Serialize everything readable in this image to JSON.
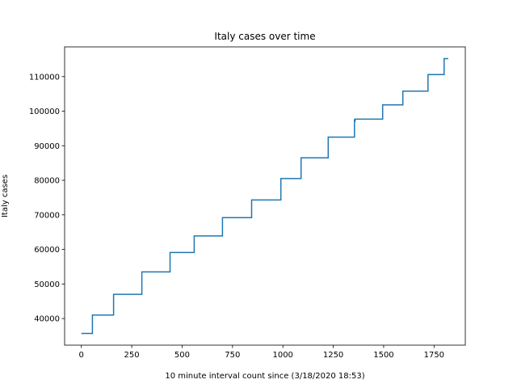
{
  "chart_data": {
    "type": "line",
    "title": "Italy cases over time",
    "xlabel": "10 minute interval count since (3/18/2020 18:53)",
    "ylabel": "Italy cases",
    "xlim": [
      -83,
      1905
    ],
    "ylim": [
      32300,
      118600
    ],
    "xticks": [
      0,
      250,
      500,
      750,
      1000,
      1250,
      1500,
      1750
    ],
    "yticks": [
      40000,
      50000,
      60000,
      70000,
      80000,
      90000,
      100000,
      110000
    ],
    "grid": false,
    "line_color": "#1f77b4",
    "series": [
      {
        "x": [
          0,
          55,
          55,
          160,
          160,
          300,
          300,
          440,
          440,
          560,
          560,
          700,
          700,
          845,
          845,
          990,
          990,
          1090,
          1090,
          1225,
          1225,
          1355,
          1355,
          1358,
          1358,
          1495,
          1495,
          1595,
          1595,
          1720,
          1720,
          1800,
          1800,
          1820
        ],
        "y": [
          35700,
          35700,
          41000,
          41000,
          47000,
          47000,
          53500,
          53500,
          59100,
          59100,
          63900,
          63900,
          69200,
          69200,
          74300,
          74300,
          80500,
          80500,
          86500,
          86500,
          92500,
          92500,
          97700,
          96900,
          97700,
          97700,
          101800,
          101800,
          105800,
          105800,
          110600,
          110600,
          115200,
          115200
        ]
      }
    ]
  }
}
